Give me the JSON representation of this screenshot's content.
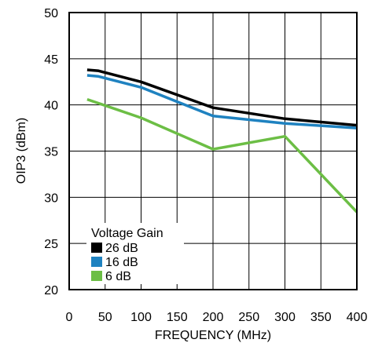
{
  "chart_data": {
    "type": "line",
    "xlabel": "FREQUENCY (MHz)",
    "ylabel": "OIP3 (dBm)",
    "xlim": [
      0,
      400
    ],
    "ylim": [
      20,
      50
    ],
    "x_ticks": [
      "0",
      "50",
      "100",
      "150",
      "200",
      "250",
      "300",
      "350",
      "400"
    ],
    "y_ticks": [
      "20",
      "25",
      "30",
      "35",
      "40",
      "45",
      "50"
    ],
    "grid": true,
    "legend": {
      "title": "Voltage Gain",
      "placement": "bottom-left"
    },
    "series": [
      {
        "name": "26 dB",
        "color": "#000000",
        "x": [
          25,
          40,
          100,
          200,
          300,
          400
        ],
        "y": [
          43.8,
          43.7,
          42.5,
          39.7,
          38.5,
          37.8
        ]
      },
      {
        "name": "16 dB",
        "color": "#1f82c0",
        "x": [
          25,
          40,
          100,
          200,
          300,
          400
        ],
        "y": [
          43.2,
          43.1,
          41.9,
          38.8,
          38.0,
          37.5
        ]
      },
      {
        "name": "6 dB",
        "color": "#6cbe45",
        "x": [
          25,
          100,
          200,
          300,
          400
        ],
        "y": [
          40.6,
          38.6,
          35.2,
          36.6,
          28.4
        ]
      }
    ]
  }
}
